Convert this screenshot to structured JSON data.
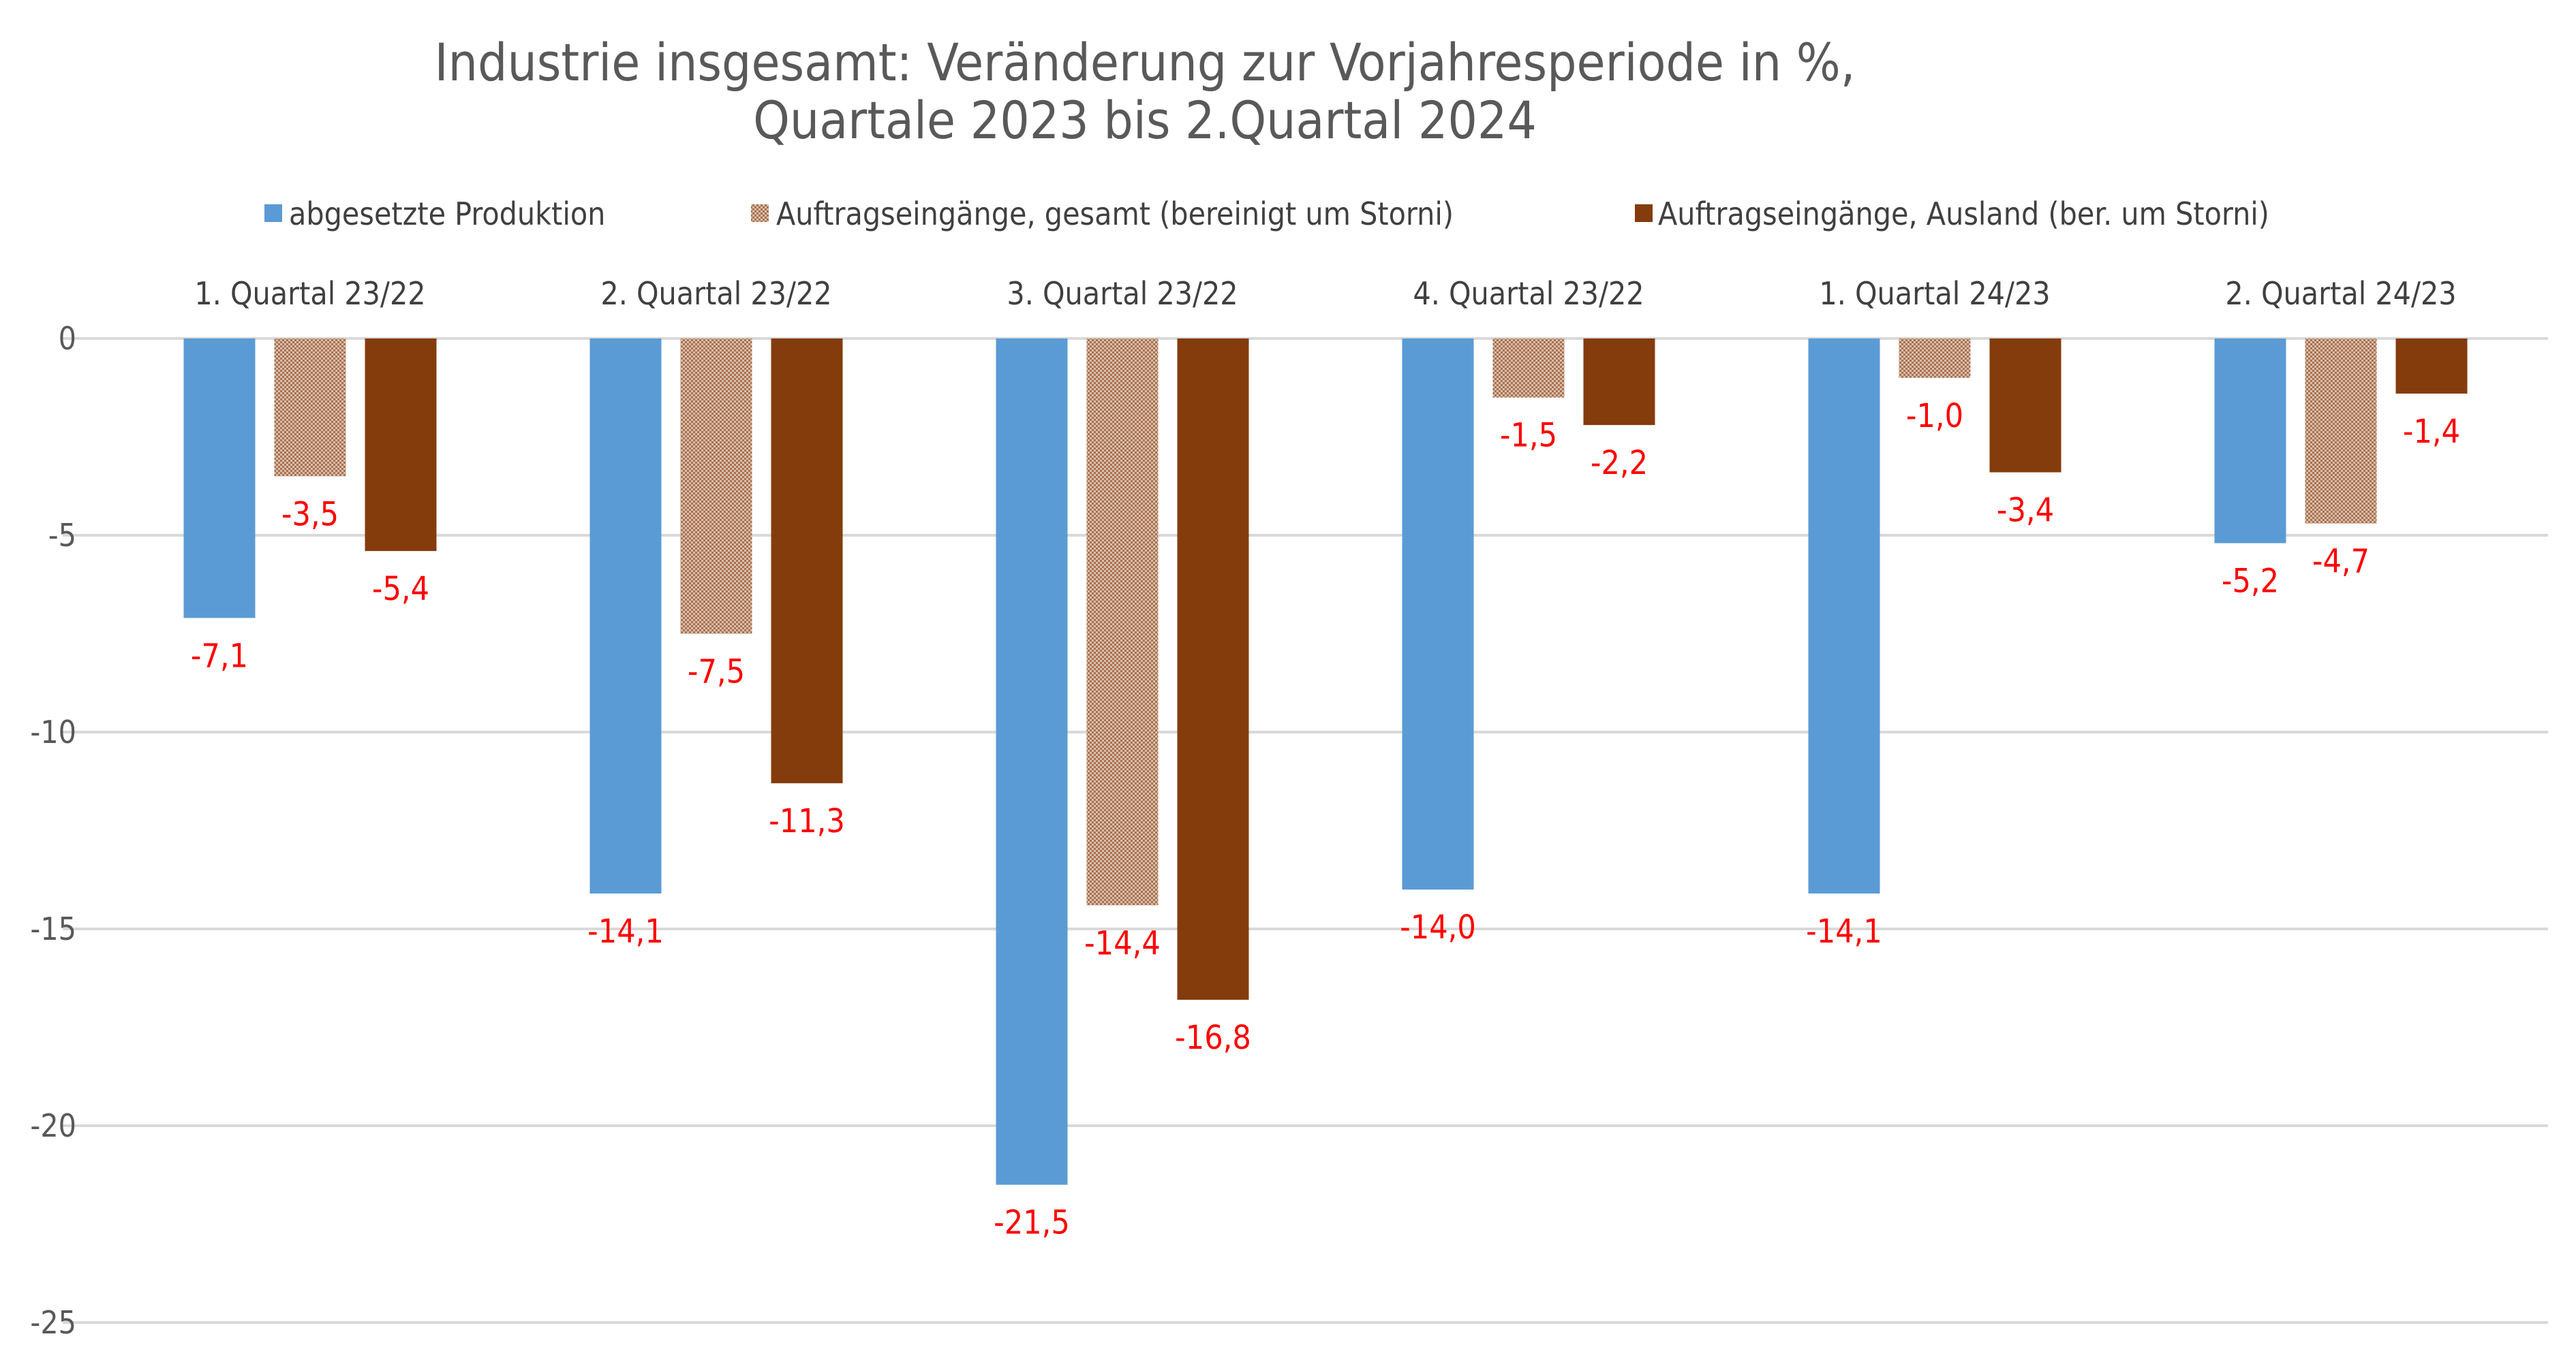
{
  "chart_data": {
    "type": "bar",
    "title": "Industrie insgesamt: Veränderung zur Vorjahresperiode in %,",
    "subtitle": "Quartale 2023 bis 2.Quartal 2024",
    "xlabel": "",
    "ylabel": "",
    "ylim": [
      -25,
      0
    ],
    "yticks": [
      0,
      -5,
      -10,
      -15,
      -20,
      -25
    ],
    "grid": true,
    "legend_position": "top",
    "category_axis_position": "top",
    "categories": [
      "1. Quartal 23/22",
      "2. Quartal 23/22",
      "3. Quartal 23/22",
      "4. Quartal 23/22",
      "1. Quartal 24/23",
      "2. Quartal 24/23"
    ],
    "series": [
      {
        "name": "abgesetzte Produktion",
        "color": "#5B9BD5",
        "values": [
          -7.1,
          -14.1,
          -21.5,
          -14.0,
          -14.1,
          -5.2
        ]
      },
      {
        "name": "Auftragseingänge, gesamt (bereinigt um Storni)",
        "color": "#C49D84",
        "values": [
          -3.5,
          -7.5,
          -14.4,
          -1.5,
          -1.0,
          -4.7
        ]
      },
      {
        "name": "Auftragseingänge, Ausland (ber. um Storni)",
        "color": "#843C0C",
        "values": [
          -5.4,
          -11.3,
          -16.8,
          -2.2,
          -3.4,
          -1.4
        ]
      }
    ],
    "data_label_color": "#FF0000"
  }
}
